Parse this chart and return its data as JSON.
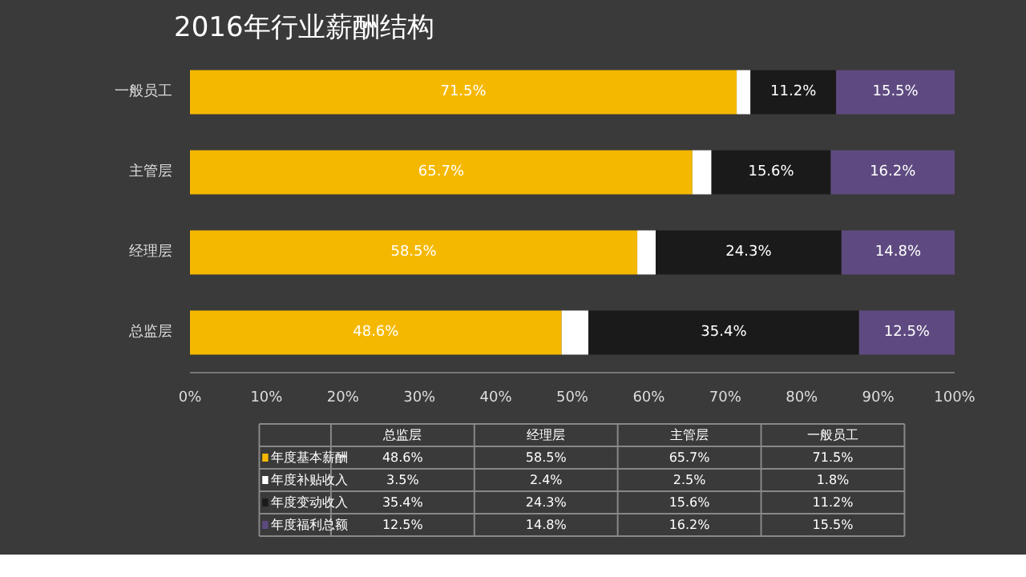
{
  "chart_data": {
    "type": "bar",
    "title": "2016年行业薪酬结构",
    "orientation": "horizontal",
    "stacked": true,
    "legend": "bottom",
    "data_labels": true,
    "categories": [
      "一般员工",
      "主管层",
      "经理层",
      "总监层"
    ],
    "series": [
      {
        "name": "年度基本薪酬",
        "color": "#f5b800",
        "values": [
          71.5,
          65.7,
          58.5,
          48.6
        ],
        "value_labels": [
          "71.5%",
          "65.7%",
          "58.5%",
          "48.6%"
        ]
      },
      {
        "name": "年度补贴收入",
        "color": "#ffffff",
        "values": [
          1.8,
          2.5,
          2.4,
          3.5
        ],
        "value_labels": [
          null,
          null,
          null,
          null
        ]
      },
      {
        "name": "年度变动收入",
        "color": "#1a1a1a",
        "values": [
          11.2,
          15.6,
          24.3,
          35.4
        ],
        "value_labels": [
          "11.2%",
          "15.6%",
          "24.3%",
          "35.4%"
        ]
      },
      {
        "name": "年度福利总额",
        "color": "#5e4a80",
        "values": [
          15.5,
          16.2,
          14.8,
          12.5
        ],
        "value_labels": [
          "15.5%",
          "16.2%",
          "14.8%",
          "12.5%"
        ]
      }
    ],
    "annotations": [
      "1.8%",
      "2.5%",
      "2.4%",
      "3.5%"
    ],
    "xlim": [
      0,
      100
    ],
    "xticks": [
      {
        "value": 0,
        "label": "0%"
      },
      {
        "value": 10,
        "label": "10%"
      },
      {
        "value": 20,
        "label": "20%"
      },
      {
        "value": 30,
        "label": "30%"
      },
      {
        "value": 40,
        "label": "40%"
      },
      {
        "value": 50,
        "label": "50%"
      },
      {
        "value": 60,
        "label": "60%"
      },
      {
        "value": 70,
        "label": "70%"
      },
      {
        "value": 80,
        "label": "80%"
      },
      {
        "value": 90,
        "label": "90%"
      },
      {
        "value": 100,
        "label": "100%"
      }
    ]
  }
}
